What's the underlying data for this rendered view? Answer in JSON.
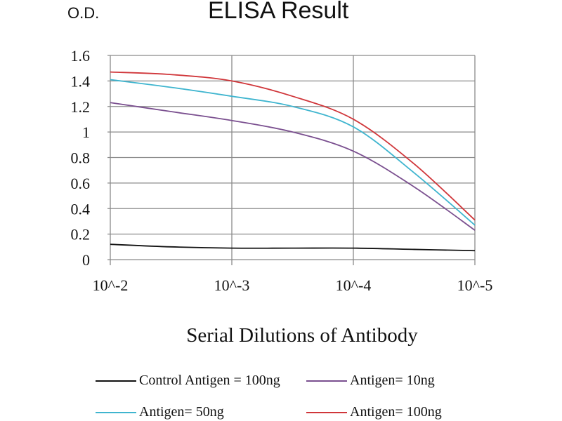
{
  "chart_data": {
    "type": "line",
    "title": "ELISA Result",
    "ylabel": "O.D.",
    "xlabel": "Serial Dilutions of Antibody",
    "x_log10": [
      -2,
      -2.5,
      -3,
      -3.5,
      -4,
      -4.5,
      -5
    ],
    "xtick_labels": [
      "10^-2",
      "10^-3",
      "10^-4",
      "10^-5"
    ],
    "xtick_values": [
      -2,
      -3,
      -4,
      -5
    ],
    "yticks": [
      0,
      0.2,
      0.4,
      0.6,
      0.8,
      1,
      1.2,
      1.4,
      1.6
    ],
    "ytick_labels": [
      "0",
      "0.2",
      "0.4",
      "0.6",
      "0.8",
      "1",
      "1.2",
      "1.4",
      "1.6"
    ],
    "ylim": [
      0,
      1.6
    ],
    "grid": true,
    "legend_position": "bottom",
    "series": [
      {
        "name": "Control Antigen = 100ng",
        "color": "#111111",
        "values": [
          0.12,
          0.1,
          0.09,
          0.09,
          0.09,
          0.08,
          0.07
        ]
      },
      {
        "name": "Antigen= 10ng",
        "color": "#7a4f8f",
        "values": [
          1.23,
          1.16,
          1.09,
          1.0,
          0.85,
          0.57,
          0.23
        ]
      },
      {
        "name": "Antigen= 50ng",
        "color": "#3fb5cf",
        "values": [
          1.41,
          1.35,
          1.28,
          1.2,
          1.04,
          0.68,
          0.27
        ]
      },
      {
        "name": "Antigen= 100ng",
        "color": "#d0363a",
        "values": [
          1.47,
          1.45,
          1.4,
          1.28,
          1.1,
          0.75,
          0.31
        ]
      }
    ]
  }
}
